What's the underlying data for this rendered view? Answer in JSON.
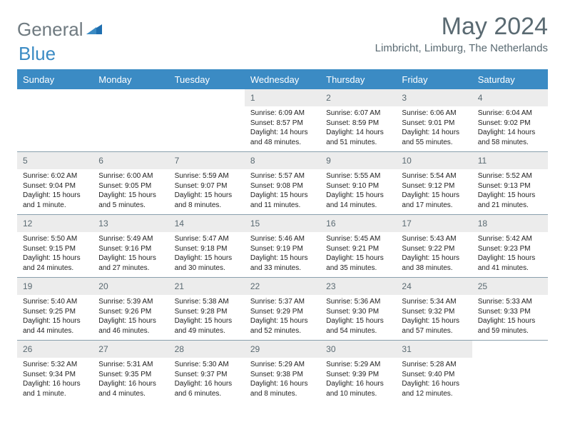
{
  "logo": {
    "text1": "General",
    "text2": "Blue"
  },
  "title": "May 2024",
  "subtitle": "Limbricht, Limburg, The Netherlands",
  "dayHeaders": [
    "Sunday",
    "Monday",
    "Tuesday",
    "Wednesday",
    "Thursday",
    "Friday",
    "Saturday"
  ],
  "colors": {
    "header_bg": "#3b8bc4",
    "header_text": "#ffffff",
    "daynum_bg": "#ececec",
    "text_muted": "#5a6a72",
    "rule": "#8aa0ad"
  },
  "weeks": [
    [
      {
        "n": "",
        "sr": "",
        "ss": "",
        "dl": ""
      },
      {
        "n": "",
        "sr": "",
        "ss": "",
        "dl": ""
      },
      {
        "n": "",
        "sr": "",
        "ss": "",
        "dl": ""
      },
      {
        "n": "1",
        "sr": "Sunrise: 6:09 AM",
        "ss": "Sunset: 8:57 PM",
        "dl": "Daylight: 14 hours and 48 minutes."
      },
      {
        "n": "2",
        "sr": "Sunrise: 6:07 AM",
        "ss": "Sunset: 8:59 PM",
        "dl": "Daylight: 14 hours and 51 minutes."
      },
      {
        "n": "3",
        "sr": "Sunrise: 6:06 AM",
        "ss": "Sunset: 9:01 PM",
        "dl": "Daylight: 14 hours and 55 minutes."
      },
      {
        "n": "4",
        "sr": "Sunrise: 6:04 AM",
        "ss": "Sunset: 9:02 PM",
        "dl": "Daylight: 14 hours and 58 minutes."
      }
    ],
    [
      {
        "n": "5",
        "sr": "Sunrise: 6:02 AM",
        "ss": "Sunset: 9:04 PM",
        "dl": "Daylight: 15 hours and 1 minute."
      },
      {
        "n": "6",
        "sr": "Sunrise: 6:00 AM",
        "ss": "Sunset: 9:05 PM",
        "dl": "Daylight: 15 hours and 5 minutes."
      },
      {
        "n": "7",
        "sr": "Sunrise: 5:59 AM",
        "ss": "Sunset: 9:07 PM",
        "dl": "Daylight: 15 hours and 8 minutes."
      },
      {
        "n": "8",
        "sr": "Sunrise: 5:57 AM",
        "ss": "Sunset: 9:08 PM",
        "dl": "Daylight: 15 hours and 11 minutes."
      },
      {
        "n": "9",
        "sr": "Sunrise: 5:55 AM",
        "ss": "Sunset: 9:10 PM",
        "dl": "Daylight: 15 hours and 14 minutes."
      },
      {
        "n": "10",
        "sr": "Sunrise: 5:54 AM",
        "ss": "Sunset: 9:12 PM",
        "dl": "Daylight: 15 hours and 17 minutes."
      },
      {
        "n": "11",
        "sr": "Sunrise: 5:52 AM",
        "ss": "Sunset: 9:13 PM",
        "dl": "Daylight: 15 hours and 21 minutes."
      }
    ],
    [
      {
        "n": "12",
        "sr": "Sunrise: 5:50 AM",
        "ss": "Sunset: 9:15 PM",
        "dl": "Daylight: 15 hours and 24 minutes."
      },
      {
        "n": "13",
        "sr": "Sunrise: 5:49 AM",
        "ss": "Sunset: 9:16 PM",
        "dl": "Daylight: 15 hours and 27 minutes."
      },
      {
        "n": "14",
        "sr": "Sunrise: 5:47 AM",
        "ss": "Sunset: 9:18 PM",
        "dl": "Daylight: 15 hours and 30 minutes."
      },
      {
        "n": "15",
        "sr": "Sunrise: 5:46 AM",
        "ss": "Sunset: 9:19 PM",
        "dl": "Daylight: 15 hours and 33 minutes."
      },
      {
        "n": "16",
        "sr": "Sunrise: 5:45 AM",
        "ss": "Sunset: 9:21 PM",
        "dl": "Daylight: 15 hours and 35 minutes."
      },
      {
        "n": "17",
        "sr": "Sunrise: 5:43 AM",
        "ss": "Sunset: 9:22 PM",
        "dl": "Daylight: 15 hours and 38 minutes."
      },
      {
        "n": "18",
        "sr": "Sunrise: 5:42 AM",
        "ss": "Sunset: 9:23 PM",
        "dl": "Daylight: 15 hours and 41 minutes."
      }
    ],
    [
      {
        "n": "19",
        "sr": "Sunrise: 5:40 AM",
        "ss": "Sunset: 9:25 PM",
        "dl": "Daylight: 15 hours and 44 minutes."
      },
      {
        "n": "20",
        "sr": "Sunrise: 5:39 AM",
        "ss": "Sunset: 9:26 PM",
        "dl": "Daylight: 15 hours and 46 minutes."
      },
      {
        "n": "21",
        "sr": "Sunrise: 5:38 AM",
        "ss": "Sunset: 9:28 PM",
        "dl": "Daylight: 15 hours and 49 minutes."
      },
      {
        "n": "22",
        "sr": "Sunrise: 5:37 AM",
        "ss": "Sunset: 9:29 PM",
        "dl": "Daylight: 15 hours and 52 minutes."
      },
      {
        "n": "23",
        "sr": "Sunrise: 5:36 AM",
        "ss": "Sunset: 9:30 PM",
        "dl": "Daylight: 15 hours and 54 minutes."
      },
      {
        "n": "24",
        "sr": "Sunrise: 5:34 AM",
        "ss": "Sunset: 9:32 PM",
        "dl": "Daylight: 15 hours and 57 minutes."
      },
      {
        "n": "25",
        "sr": "Sunrise: 5:33 AM",
        "ss": "Sunset: 9:33 PM",
        "dl": "Daylight: 15 hours and 59 minutes."
      }
    ],
    [
      {
        "n": "26",
        "sr": "Sunrise: 5:32 AM",
        "ss": "Sunset: 9:34 PM",
        "dl": "Daylight: 16 hours and 1 minute."
      },
      {
        "n": "27",
        "sr": "Sunrise: 5:31 AM",
        "ss": "Sunset: 9:35 PM",
        "dl": "Daylight: 16 hours and 4 minutes."
      },
      {
        "n": "28",
        "sr": "Sunrise: 5:30 AM",
        "ss": "Sunset: 9:37 PM",
        "dl": "Daylight: 16 hours and 6 minutes."
      },
      {
        "n": "29",
        "sr": "Sunrise: 5:29 AM",
        "ss": "Sunset: 9:38 PM",
        "dl": "Daylight: 16 hours and 8 minutes."
      },
      {
        "n": "30",
        "sr": "Sunrise: 5:29 AM",
        "ss": "Sunset: 9:39 PM",
        "dl": "Daylight: 16 hours and 10 minutes."
      },
      {
        "n": "31",
        "sr": "Sunrise: 5:28 AM",
        "ss": "Sunset: 9:40 PM",
        "dl": "Daylight: 16 hours and 12 minutes."
      },
      {
        "n": "",
        "sr": "",
        "ss": "",
        "dl": ""
      }
    ]
  ]
}
